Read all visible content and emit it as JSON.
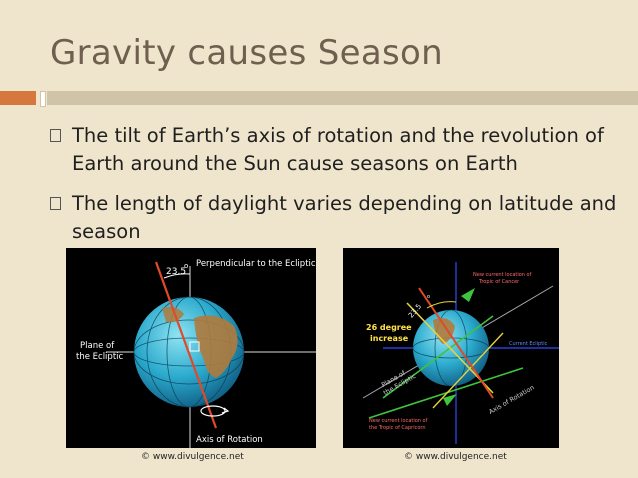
{
  "slide": {
    "title": "Gravity causes Season",
    "bullets": [
      "The tilt of Earth’s axis of rotation and the revolution of Earth around the Sun cause seasons on Earth",
      "The length of daylight varies depending on latitude and season"
    ]
  },
  "figure_left": {
    "angle_label": "23.5",
    "degree_symbol": "o",
    "perpendicular_label": "Perpendicular to the Ecliptic",
    "plane_label_line1": "Plane of",
    "plane_label_line2": "the Ecliptic",
    "axis_label": "Axis of Rotation",
    "credit": "© www.divulgence.net"
  },
  "figure_right": {
    "cancer_line1": "New current location of",
    "cancer_line2": "Tropic of Cancer",
    "angle_label": "23.5",
    "degree_symbol": "o",
    "increase_line1": "26 degree",
    "increase_line2": "increase",
    "ecliptic_label": "Current Ecliptic",
    "plane_label_line1": "Plane of",
    "plane_label_line2": "the Ecliptic",
    "axis_label": "Axis of Rotation",
    "capricorn_line1": "New current location of",
    "capricorn_line2": "the Tropic of Capricorn",
    "credit": "© www.divulgence.net"
  },
  "colors": {
    "background": "#efe5cd",
    "title": "#6f5f4f",
    "accent": "#d6783d",
    "rule": "#cfc3a8",
    "earth_ocean": "#2bb0d0",
    "axis_red": "#e04a2a"
  }
}
